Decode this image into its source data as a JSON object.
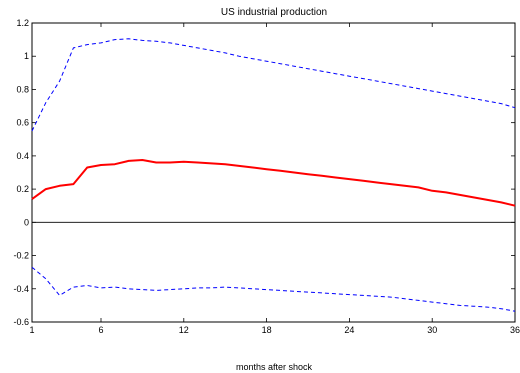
{
  "chart_data": {
    "type": "line",
    "title": "US industrial production",
    "xlabel": "months after shock",
    "ylabel": "",
    "xlim": [
      1,
      36
    ],
    "ylim": [
      -0.6,
      1.2
    ],
    "xticks": [
      1,
      6,
      12,
      18,
      24,
      30,
      36
    ],
    "yticks": [
      -0.6,
      -0.4,
      -0.2,
      0,
      0.2,
      0.4,
      0.6,
      0.8,
      1,
      1.2
    ],
    "ytick_labels": [
      "-0.6",
      "-0.4",
      "-0.2",
      "0",
      "0.2",
      "0.4",
      "0.6",
      "0.8",
      "1",
      "1.2"
    ],
    "grid": false,
    "zero_line": true,
    "x": [
      1,
      2,
      3,
      4,
      5,
      6,
      7,
      8,
      9,
      10,
      11,
      12,
      13,
      14,
      15,
      16,
      17,
      18,
      19,
      20,
      21,
      22,
      23,
      24,
      25,
      26,
      27,
      28,
      29,
      30,
      31,
      32,
      33,
      34,
      35,
      36
    ],
    "series": [
      {
        "style": "solid",
        "color": "#ff0000",
        "values": [
          0.14,
          0.2,
          0.22,
          0.23,
          0.33,
          0.345,
          0.35,
          0.37,
          0.375,
          0.36,
          0.36,
          0.365,
          0.36,
          0.355,
          0.35,
          0.34,
          0.33,
          0.32,
          0.31,
          0.3,
          0.29,
          0.28,
          0.27,
          0.26,
          0.25,
          0.24,
          0.23,
          0.22,
          0.21,
          0.19,
          0.18,
          0.165,
          0.15,
          0.135,
          0.12,
          0.1
        ]
      },
      {
        "style": "dashed",
        "color": "#0000ff",
        "values": [
          0.55,
          0.72,
          0.85,
          1.05,
          1.07,
          1.08,
          1.1,
          1.105,
          1.095,
          1.09,
          1.08,
          1.065,
          1.05,
          1.035,
          1.02,
          1.0,
          0.985,
          0.97,
          0.955,
          0.94,
          0.925,
          0.91,
          0.895,
          0.88,
          0.865,
          0.85,
          0.835,
          0.82,
          0.805,
          0.79,
          0.775,
          0.76,
          0.745,
          0.73,
          0.715,
          0.69
        ]
      },
      {
        "style": "dashed",
        "color": "#0000ff",
        "values": [
          -0.27,
          -0.34,
          -0.44,
          -0.39,
          -0.38,
          -0.395,
          -0.39,
          -0.4,
          -0.405,
          -0.41,
          -0.405,
          -0.4,
          -0.395,
          -0.395,
          -0.39,
          -0.395,
          -0.4,
          -0.405,
          -0.41,
          -0.415,
          -0.42,
          -0.425,
          -0.43,
          -0.435,
          -0.44,
          -0.445,
          -0.45,
          -0.46,
          -0.47,
          -0.48,
          -0.49,
          -0.5,
          -0.505,
          -0.51,
          -0.52,
          -0.535
        ]
      }
    ]
  }
}
